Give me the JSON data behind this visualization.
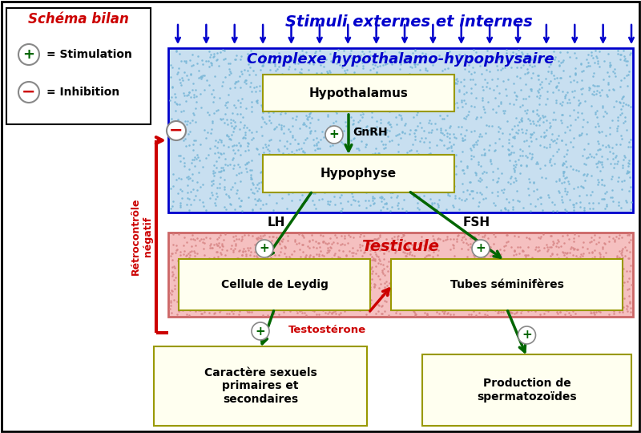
{
  "title": "Stimuli externes et internes",
  "legend_title": "Schéma bilan",
  "legend_stim": "= Stimulation",
  "legend_inhib": "= Inhibition",
  "complex_label": "Complexe hypothalamo-hypophysaire",
  "hypothalamus_label": "Hypothalamus",
  "hypophyse_label": "Hypophyse",
  "gnrh_label": "GnRH",
  "testicule_label": "Testicule",
  "leydig_label": "Cellule de Leydig",
  "tubes_label": "Tubes séminifères",
  "lh_label": "LH",
  "fsh_label": "FSH",
  "testosterone_label": "Testostérone",
  "retro_label": "Rétrocontrôle\nnégatif",
  "caractere_label": "Caractère sexuels\nprimaires et\nsecondaires",
  "production_label": "Production de\nspermatozoïdes",
  "bg_color": "#ffffff",
  "complex_bg": "#c8dff0",
  "testicule_bg": "#f5c0c0",
  "box_bg": "#fffff0",
  "box_edge": "#999900",
  "blue_color": "#0000cc",
  "green_color": "#006600",
  "red_color": "#cc0000"
}
